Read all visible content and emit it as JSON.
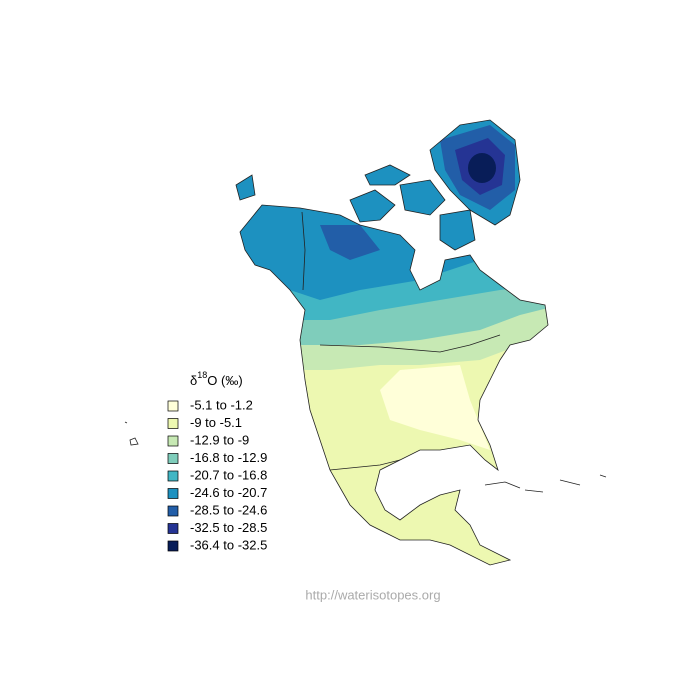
{
  "legend": {
    "title": {
      "symbol": "δ",
      "superscript": "18",
      "suffix": "O (‰)"
    },
    "items": [
      {
        "label": "-5.1 to -1.2",
        "color": "#ffffd9"
      },
      {
        "label": "-9 to -5.1",
        "color": "#edf8b1"
      },
      {
        "label": "-12.9 to -9",
        "color": "#c7e9b4"
      },
      {
        "label": "-16.8 to -12.9",
        "color": "#7fcdbb"
      },
      {
        "label": "-20.7 to -16.8",
        "color": "#41b6c4"
      },
      {
        "label": "-24.6 to -20.7",
        "color": "#1d91c0"
      },
      {
        "label": "-28.5 to -24.6",
        "color": "#225ea8"
      },
      {
        "label": "-32.5 to -28.5",
        "color": "#253494"
      },
      {
        "label": "-36.4 to -32.5",
        "color": "#081d58"
      }
    ]
  },
  "footer": {
    "url": "http://waterisotopes.org"
  }
}
